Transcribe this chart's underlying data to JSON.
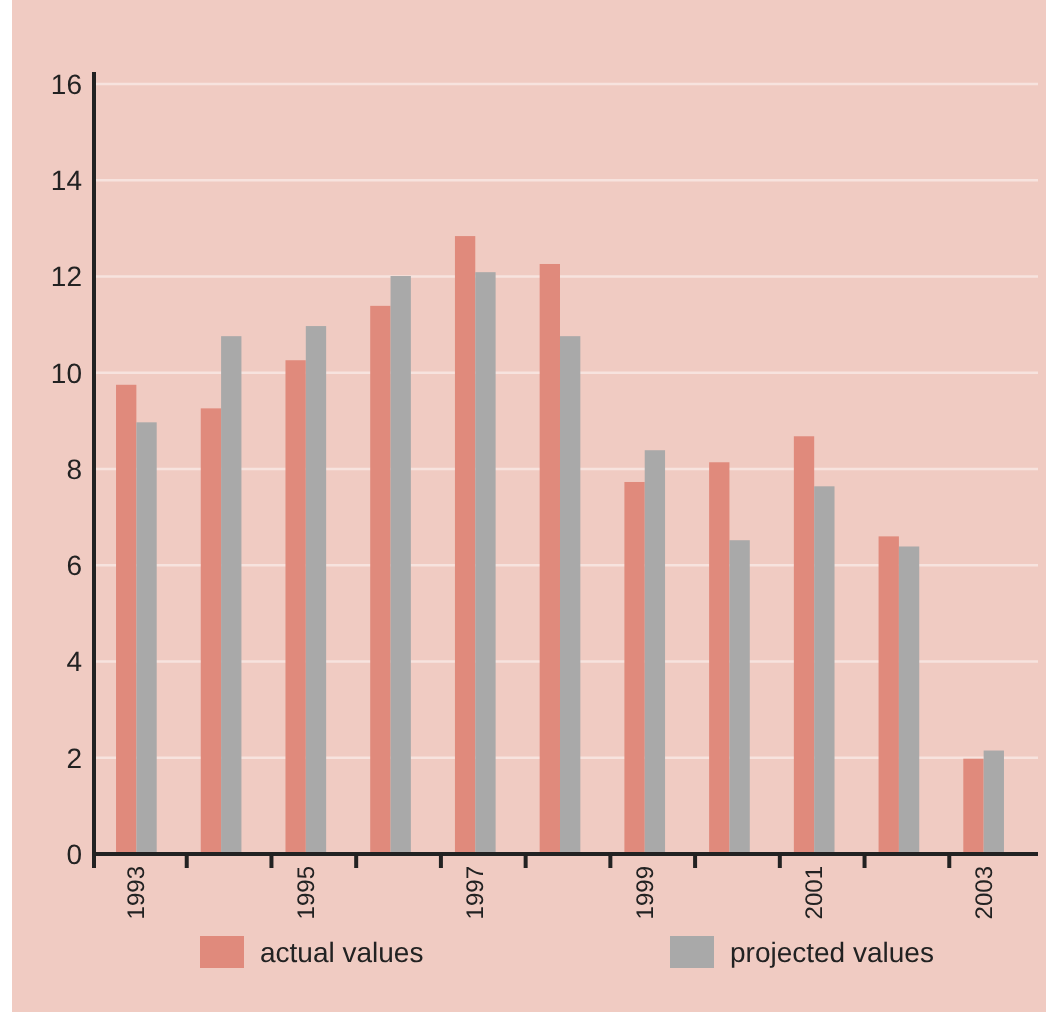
{
  "chart_data": {
    "type": "bar",
    "categories": [
      "1993",
      null,
      "1995",
      null,
      "1997",
      null,
      "1999",
      null,
      "2001",
      null,
      "2003"
    ],
    "series": [
      {
        "name": "actual values",
        "color": "#e08a7c",
        "values": [
          9.75,
          9.26,
          10.26,
          11.39,
          12.84,
          12.26,
          7.73,
          8.14,
          8.68,
          6.6,
          1.98
        ]
      },
      {
        "name": "projected values",
        "color": "#a9a9a9",
        "values": [
          8.97,
          10.76,
          10.97,
          12.01,
          12.09,
          10.76,
          8.39,
          6.52,
          7.64,
          6.39,
          2.15
        ]
      }
    ],
    "ylim": [
      0,
      16
    ],
    "yticks": [
      0,
      2,
      4,
      6,
      8,
      10,
      12,
      14,
      16
    ],
    "grid": "y",
    "legend": "bottom"
  }
}
